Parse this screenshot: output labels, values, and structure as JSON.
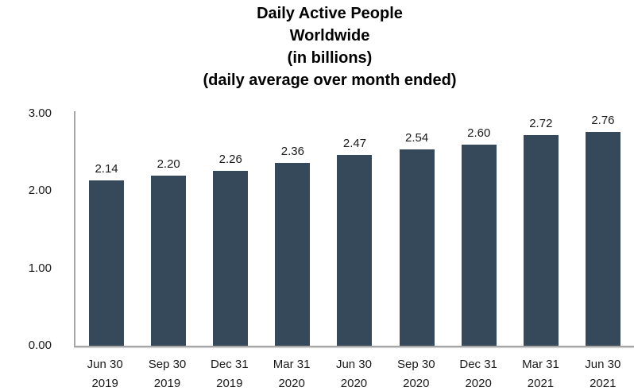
{
  "chart_data": {
    "type": "bar",
    "title_lines": [
      "Daily Active People",
      "Worldwide",
      "(in billions)",
      "(daily average over month ended)"
    ],
    "title_text": "Daily Active People\nWorldwide\n(in billions)\n(daily average over month ended)",
    "categories": [
      [
        "Jun 30",
        "2019"
      ],
      [
        "Sep 30",
        "2019"
      ],
      [
        "Dec 31",
        "2019"
      ],
      [
        "Mar 31",
        "2020"
      ],
      [
        "Jun 30",
        "2020"
      ],
      [
        "Sep 30",
        "2020"
      ],
      [
        "Dec 31",
        "2020"
      ],
      [
        "Mar 31",
        "2021"
      ],
      [
        "Jun 30",
        "2021"
      ]
    ],
    "values": [
      2.14,
      2.2,
      2.26,
      2.36,
      2.47,
      2.54,
      2.6,
      2.72,
      2.76
    ],
    "value_labels": [
      "2.14",
      "2.20",
      "2.26",
      "2.36",
      "2.47",
      "2.54",
      "2.60",
      "2.72",
      "2.76"
    ],
    "yticks": [
      {
        "value": 0,
        "label": "0.00"
      },
      {
        "value": 1,
        "label": "1.00"
      },
      {
        "value": 2,
        "label": "2.00"
      },
      {
        "value": 3,
        "label": "3.00"
      }
    ],
    "ylim": [
      0,
      3.05
    ],
    "xlabel": "",
    "ylabel": "",
    "grid": false,
    "legend": "none",
    "bar_color": "#36495A",
    "axis_color": "#A6A6A6",
    "label_color": "#1a1a1a"
  }
}
